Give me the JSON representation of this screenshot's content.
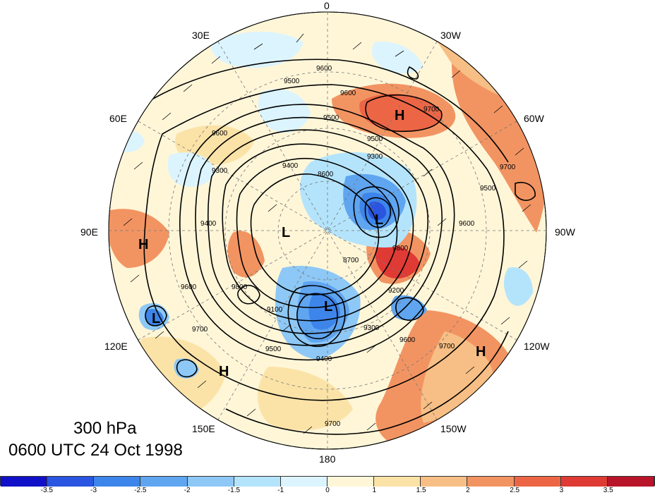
{
  "map": {
    "title_level": "300 hPa",
    "title_time": "0600 UTC 24 Oct 1998",
    "longitude_labels": [
      "0",
      "30W",
      "60W",
      "90W",
      "120W",
      "150W",
      "180",
      "150E",
      "120E",
      "90E",
      "60E",
      "30E"
    ],
    "contour_labels": [
      "9600",
      "9500",
      "9600",
      "9700",
      "9500",
      "9600",
      "9500",
      "9400",
      "9300",
      "9300",
      "9400",
      "9500",
      "9600",
      "9700",
      "8600",
      "8700",
      "9100",
      "9200",
      "9300",
      "9400",
      "9500",
      "9600",
      "9700",
      "9800",
      "9600",
      "9700",
      "9800",
      "9700"
    ],
    "highs": [
      "H",
      "H",
      "H",
      "H"
    ],
    "lows": [
      "L",
      "L",
      "L",
      "L"
    ],
    "colors": {
      "neg35": "#1010c8",
      "neg3": "#2a55e0",
      "neg25": "#3d85ea",
      "neg2": "#5fa5f0",
      "neg15": "#8ec8f6",
      "neg1": "#b4e4fb",
      "neg05": "#dcf4fd",
      "zero": "#fff6d8",
      "pos1": "#fbe3a8",
      "pos15": "#f7bf85",
      "pos2": "#f29462",
      "pos25": "#ec6646",
      "pos3": "#e03a35",
      "pos35": "#b8142a"
    }
  },
  "colorbar": {
    "ticks": [
      "-3.5",
      "-3",
      "-2.5",
      "-2",
      "-1.5",
      "-1",
      "0",
      "1",
      "1.5",
      "2",
      "2.5",
      "3",
      "3.5"
    ],
    "colors": [
      "#1010c8",
      "#2a55e0",
      "#3d85ea",
      "#5fa5f0",
      "#8ec8f6",
      "#b4e4fb",
      "#dcf4fd",
      "#fff6d8",
      "#fbe3a8",
      "#f7bf85",
      "#f29462",
      "#ec6646",
      "#e03a35",
      "#b8142a"
    ]
  }
}
